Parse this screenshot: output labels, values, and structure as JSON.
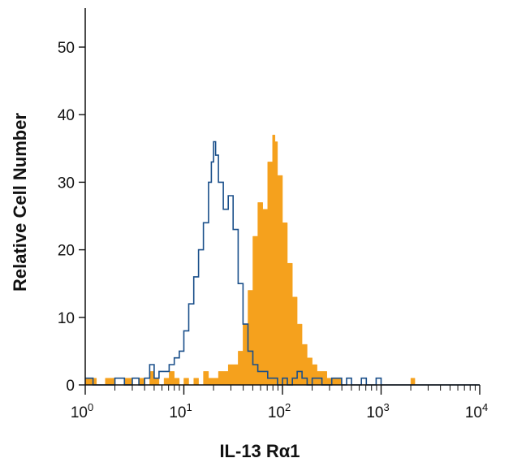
{
  "chart_data": {
    "type": "histogram",
    "title": "",
    "xlabel": "IL-13 Rα1",
    "ylabel": "Relative Cell Number",
    "x_scale": "log10",
    "xlim": [
      1,
      10000
    ],
    "ylim": [
      0,
      55
    ],
    "x_ticks": [
      {
        "base": "10",
        "exp": "0"
      },
      {
        "base": "10",
        "exp": "1"
      },
      {
        "base": "10",
        "exp": "2"
      },
      {
        "base": "10",
        "exp": "3"
      },
      {
        "base": "10",
        "exp": "4"
      }
    ],
    "y_ticks": [
      "0",
      "10",
      "20",
      "30",
      "40",
      "50"
    ],
    "grid": false,
    "series": [
      {
        "style": "filled",
        "color": "#f5a11d",
        "points": [
          [
            1.0,
            1
          ],
          [
            1.3,
            0
          ],
          [
            1.6,
            1
          ],
          [
            2.0,
            0
          ],
          [
            2.5,
            1
          ],
          [
            3.0,
            0
          ],
          [
            3.5,
            1
          ],
          [
            4.0,
            0
          ],
          [
            4.5,
            2
          ],
          [
            5.0,
            1
          ],
          [
            5.6,
            0
          ],
          [
            6.3,
            1
          ],
          [
            7.1,
            2
          ],
          [
            8.0,
            1
          ],
          [
            9.0,
            0
          ],
          [
            10.0,
            1
          ],
          [
            11.2,
            0
          ],
          [
            12.6,
            1
          ],
          [
            14.1,
            0
          ],
          [
            15.8,
            2
          ],
          [
            17.8,
            1
          ],
          [
            20.0,
            1
          ],
          [
            22.4,
            2
          ],
          [
            25.1,
            2
          ],
          [
            28.2,
            3
          ],
          [
            31.6,
            3
          ],
          [
            35.5,
            5
          ],
          [
            39.8,
            9
          ],
          [
            44.7,
            14
          ],
          [
            50.1,
            22
          ],
          [
            56.2,
            27
          ],
          [
            63.1,
            26
          ],
          [
            70.8,
            33
          ],
          [
            79.4,
            37
          ],
          [
            84.0,
            36
          ],
          [
            89.1,
            31
          ],
          [
            100.0,
            24
          ],
          [
            112.0,
            18
          ],
          [
            126.0,
            13
          ],
          [
            141.0,
            9
          ],
          [
            158.0,
            6
          ],
          [
            178.0,
            4
          ],
          [
            200.0,
            3
          ],
          [
            224.0,
            2
          ],
          [
            251.0,
            2
          ],
          [
            282.0,
            1
          ],
          [
            316.0,
            1
          ],
          [
            355.0,
            1
          ],
          [
            398.0,
            0
          ],
          [
            447.0,
            0
          ],
          [
            501.0,
            0
          ],
          [
            562.0,
            0
          ],
          [
            631.0,
            0
          ],
          [
            708.0,
            0
          ],
          [
            794.0,
            0
          ],
          [
            891.0,
            0
          ],
          [
            1000.0,
            0
          ],
          [
            2000.0,
            1
          ],
          [
            2200.0,
            0
          ],
          [
            10000.0,
            0
          ]
        ]
      },
      {
        "style": "outline",
        "color": "#1a4f8a",
        "points": [
          [
            1.0,
            1
          ],
          [
            1.2,
            0
          ],
          [
            1.5,
            0
          ],
          [
            2.0,
            1
          ],
          [
            2.5,
            0
          ],
          [
            3.0,
            1
          ],
          [
            3.5,
            0
          ],
          [
            4.0,
            1
          ],
          [
            4.5,
            3
          ],
          [
            5.0,
            1
          ],
          [
            5.6,
            2
          ],
          [
            6.3,
            2
          ],
          [
            7.1,
            3
          ],
          [
            8.0,
            4
          ],
          [
            9.0,
            5
          ],
          [
            10.0,
            8
          ],
          [
            11.2,
            12
          ],
          [
            12.6,
            16
          ],
          [
            14.1,
            20
          ],
          [
            15.8,
            24
          ],
          [
            17.8,
            30
          ],
          [
            19.0,
            33
          ],
          [
            20.0,
            36
          ],
          [
            21.0,
            34
          ],
          [
            22.4,
            30
          ],
          [
            25.1,
            26
          ],
          [
            28.2,
            28
          ],
          [
            31.6,
            23
          ],
          [
            35.5,
            15
          ],
          [
            39.8,
            9
          ],
          [
            44.7,
            5
          ],
          [
            50.1,
            3
          ],
          [
            56.2,
            2
          ],
          [
            63.1,
            2
          ],
          [
            70.8,
            1
          ],
          [
            79.4,
            1
          ],
          [
            89.1,
            0
          ],
          [
            100.0,
            1
          ],
          [
            112.0,
            0
          ],
          [
            126.0,
            1
          ],
          [
            141.0,
            2
          ],
          [
            158.0,
            1
          ],
          [
            178.0,
            0
          ],
          [
            200.0,
            1
          ],
          [
            251.0,
            0
          ],
          [
            316.0,
            1
          ],
          [
            398.0,
            0
          ],
          [
            447.0,
            1
          ],
          [
            501.0,
            0
          ],
          [
            562.0,
            0
          ],
          [
            631.0,
            1
          ],
          [
            708.0,
            0
          ],
          [
            794.0,
            0
          ],
          [
            891.0,
            1
          ],
          [
            1000.0,
            0
          ],
          [
            10000.0,
            0
          ]
        ]
      }
    ]
  }
}
